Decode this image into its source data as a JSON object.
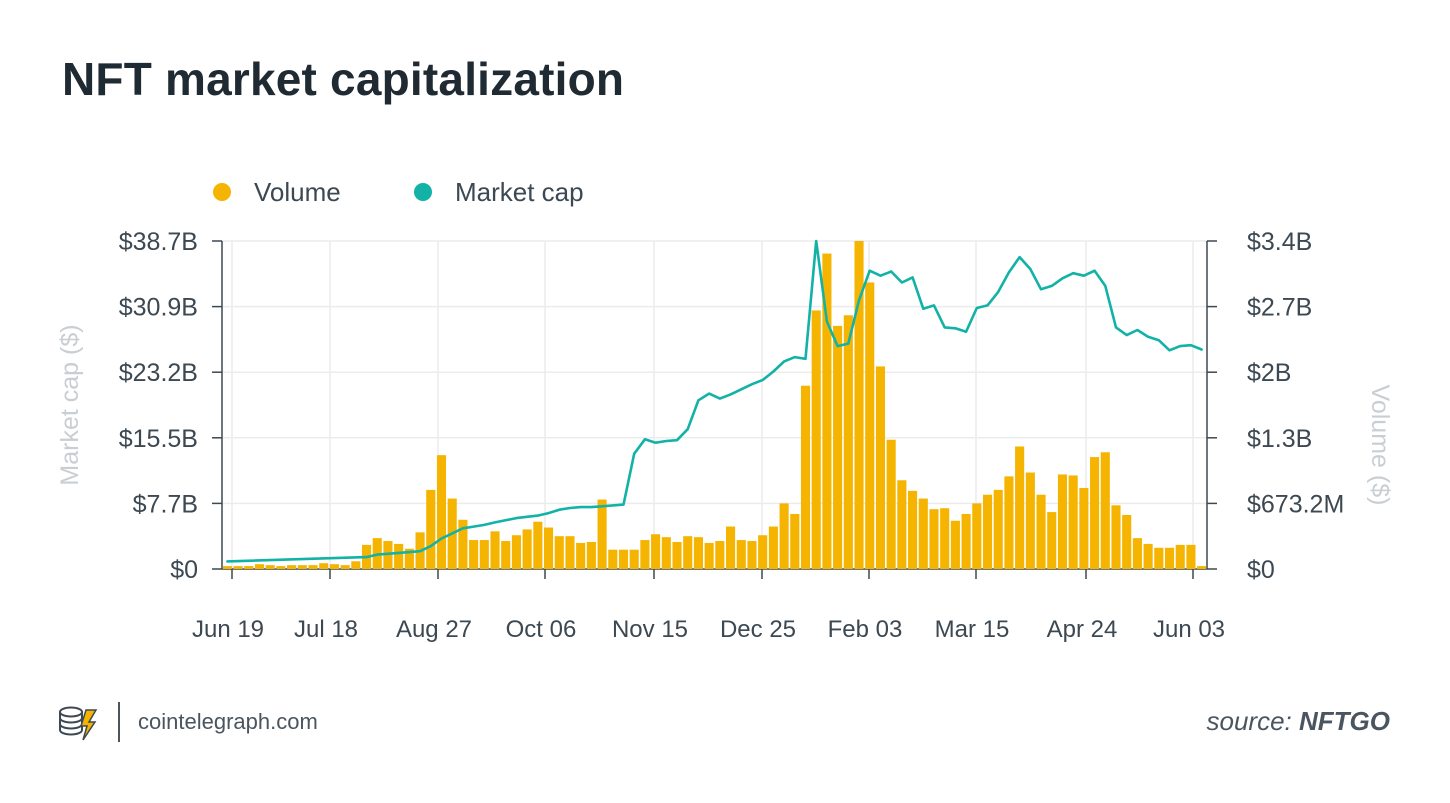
{
  "title": "NFT market capitalization",
  "brand": {
    "name": "cointelegraph.com",
    "logo_icon": "cointelegraph-logo-icon"
  },
  "source": {
    "prefix": "source:",
    "name": "NFTGO"
  },
  "colors": {
    "volume": "#F5B400",
    "market_cap": "#12B2A6",
    "text": "#3c4852",
    "muted_label": "#c9ced3",
    "grid": "#ececec",
    "axis": "#3c4852"
  },
  "chart_data": {
    "type": "bar+line",
    "title": "NFT market capitalization",
    "legend": [
      {
        "name": "Volume",
        "color": "#F5B400"
      },
      {
        "name": "Market cap",
        "color": "#12B2A6"
      }
    ],
    "x_ticks": [
      "Jun 19",
      "Jul 18",
      "Aug 27",
      "Oct 06",
      "Nov 15",
      "Dec 25",
      "Feb 03",
      "Mar 15",
      "Apr 24",
      "Jun 03"
    ],
    "left_axis": {
      "label": "Market cap ($)",
      "ticks": [
        "$0",
        "$7.7B",
        "$15.5B",
        "$23.2B",
        "$30.9B",
        "$38.7B"
      ],
      "range": [
        0,
        38.7
      ],
      "unit": "B"
    },
    "right_axis": {
      "label": "Volume ($)",
      "ticks": [
        "$0",
        "$673.2M",
        "$1.3B",
        "$2B",
        "$2.7B",
        "$3.4B"
      ],
      "range": [
        0,
        3.4
      ],
      "unit": "B"
    },
    "series": [
      {
        "name": "Volume",
        "type": "bar",
        "axis": "right",
        "unit": "B",
        "values": [
          0.03,
          0.03,
          0.03,
          0.05,
          0.04,
          0.03,
          0.04,
          0.04,
          0.04,
          0.06,
          0.05,
          0.04,
          0.08,
          0.25,
          0.32,
          0.29,
          0.26,
          0.21,
          0.38,
          0.82,
          1.18,
          0.73,
          0.51,
          0.3,
          0.3,
          0.39,
          0.29,
          0.35,
          0.41,
          0.49,
          0.43,
          0.34,
          0.34,
          0.27,
          0.28,
          0.72,
          0.2,
          0.2,
          0.2,
          0.3,
          0.36,
          0.33,
          0.28,
          0.34,
          0.33,
          0.27,
          0.29,
          0.44,
          0.3,
          0.29,
          0.35,
          0.44,
          0.68,
          0.57,
          1.9,
          2.68,
          3.27,
          2.52,
          2.63,
          3.4,
          2.97,
          2.1,
          1.34,
          0.92,
          0.81,
          0.73,
          0.62,
          0.63,
          0.5,
          0.57,
          0.68,
          0.77,
          0.82,
          0.96,
          1.27,
          1.0,
          0.77,
          0.59,
          0.98,
          0.97,
          0.84,
          1.16,
          1.21,
          0.66,
          0.56,
          0.32,
          0.26,
          0.22,
          0.22,
          0.25,
          0.25,
          0.03
        ]
      },
      {
        "name": "Market cap",
        "type": "line",
        "axis": "left",
        "unit": "B",
        "x": [
          0,
          13,
          14,
          16,
          18,
          19,
          20,
          21,
          22,
          23,
          24,
          25,
          27,
          29,
          30,
          31,
          32,
          33,
          34,
          35,
          36,
          37,
          38,
          39,
          40,
          41,
          42,
          43,
          44,
          45,
          46,
          47,
          48,
          49,
          50,
          51,
          52,
          53,
          54,
          55,
          56,
          57,
          58,
          59,
          60,
          61,
          62,
          63,
          64,
          65,
          66,
          67,
          68,
          69,
          70,
          71,
          72,
          73,
          74,
          75,
          76,
          77,
          78,
          79,
          80,
          81,
          82,
          83,
          84,
          85,
          86,
          87,
          88,
          89,
          90,
          91
        ],
        "values": [
          0.9,
          1.4,
          1.7,
          1.9,
          2.1,
          2.7,
          3.6,
          4.2,
          4.8,
          5.0,
          5.2,
          5.5,
          6.0,
          6.3,
          6.6,
          7.0,
          7.2,
          7.3,
          7.3,
          7.4,
          7.5,
          7.6,
          13.6,
          15.3,
          14.9,
          15.1,
          15.2,
          16.5,
          19.9,
          20.7,
          20.1,
          20.6,
          21.2,
          21.8,
          22.3,
          23.3,
          24.5,
          25.0,
          24.8,
          38.7,
          29.2,
          26.3,
          26.6,
          31.7,
          35.2,
          34.6,
          35.1,
          33.8,
          34.4,
          30.7,
          31.1,
          28.5,
          28.4,
          28.0,
          30.8,
          31.1,
          32.7,
          35.0,
          36.8,
          35.4,
          33.0,
          33.4,
          34.3,
          34.9,
          34.6,
          35.2,
          33.4,
          28.5,
          27.6,
          28.2,
          27.4,
          27.0,
          25.8,
          26.3,
          26.4,
          25.9
        ]
      }
    ]
  }
}
